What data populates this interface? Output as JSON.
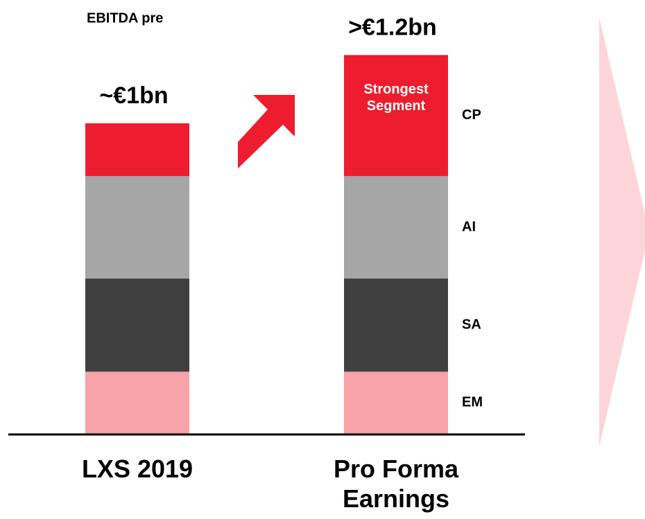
{
  "chart_data": {
    "type": "stacked_bar",
    "title": "EBITDA pre",
    "categories": [
      "LXS 2019",
      "Pro Forma Earnings"
    ],
    "series": [
      {
        "name": "EM",
        "color": "#f7a3a8",
        "values": [
          0.2,
          0.2
        ]
      },
      {
        "name": "SA",
        "color": "#404040",
        "values": [
          0.3,
          0.3
        ]
      },
      {
        "name": "AI",
        "color": "#a6a6a6",
        "values": [
          0.33,
          0.33
        ]
      },
      {
        "name": "CP",
        "color": "#ed1c2e",
        "values": [
          0.17,
          0.39
        ]
      }
    ],
    "total_labels": [
      "~€1bn",
      ">€1.2bn"
    ],
    "annotation": "Strongest Segment"
  }
}
